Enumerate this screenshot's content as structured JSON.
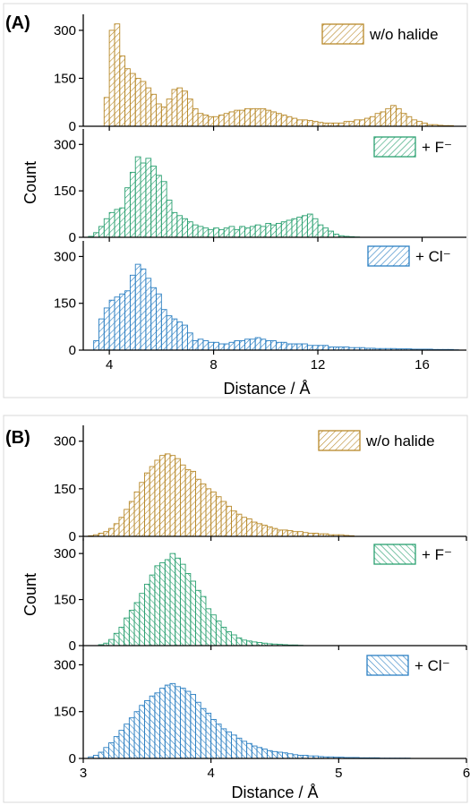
{
  "panels": [
    {
      "label": "(A)",
      "xlabel": "Distance / Å",
      "ylabel": "Count",
      "xlim": [
        3.0,
        17.7
      ],
      "xticks": [
        "4",
        "8",
        "12",
        "16"
      ],
      "xtick_values": [
        4,
        8,
        12,
        16
      ],
      "yticks": [
        "0",
        "150",
        "300"
      ],
      "ytick_values": [
        0,
        150,
        300
      ],
      "ylim": [
        0,
        350
      ]
    },
    {
      "label": "(B)",
      "xlabel": "Distance / Å",
      "ylabel": "Count",
      "xlim": [
        3.0,
        6.0
      ],
      "xticks": [
        "3",
        "4",
        "5",
        "6"
      ],
      "xtick_values": [
        3,
        4,
        5,
        6
      ],
      "yticks": [
        "0",
        "150",
        "300"
      ],
      "ytick_values": [
        0,
        150,
        300
      ],
      "ylim": [
        0,
        350
      ]
    }
  ],
  "chart_data": [
    {
      "type": "bar",
      "panel": "(A)",
      "xlabel": "Distance / Å",
      "ylabel": "Count",
      "xlim": [
        3.0,
        17.7
      ],
      "ylim": [
        0,
        350
      ],
      "bin_width": 0.2,
      "series": [
        {
          "name": "w/o halide",
          "color": "#b8892a",
          "x": [
            3.9,
            4.1,
            4.3,
            4.5,
            4.7,
            4.9,
            5.1,
            5.3,
            5.5,
            5.7,
            5.9,
            6.1,
            6.3,
            6.5,
            6.7,
            6.9,
            7.1,
            7.3,
            7.5,
            7.7,
            7.9,
            8.1,
            8.3,
            8.5,
            8.7,
            8.9,
            9.1,
            9.3,
            9.5,
            9.7,
            9.9,
            10.1,
            10.3,
            10.5,
            10.7,
            10.9,
            11.1,
            11.3,
            11.5,
            11.7,
            11.9,
            12.1,
            12.3,
            12.5,
            12.7,
            12.9,
            13.1,
            13.3,
            13.5,
            13.7,
            13.9,
            14.1,
            14.3,
            14.5,
            14.7,
            14.9,
            15.1,
            15.3,
            15.5,
            15.7,
            15.9,
            16.1,
            16.3,
            16.5,
            16.7,
            16.9,
            17.1
          ],
          "values": [
            90,
            300,
            320,
            220,
            180,
            165,
            150,
            140,
            120,
            100,
            70,
            60,
            85,
            115,
            120,
            110,
            85,
            55,
            40,
            35,
            30,
            30,
            35,
            40,
            45,
            50,
            50,
            55,
            55,
            55,
            55,
            50,
            45,
            40,
            35,
            30,
            25,
            20,
            20,
            18,
            15,
            12,
            10,
            10,
            10,
            10,
            15,
            15,
            20,
            20,
            25,
            30,
            40,
            45,
            55,
            65,
            55,
            40,
            30,
            20,
            15,
            10,
            5,
            5,
            3,
            2,
            2
          ]
        }
      ]
    },
    {
      "type": "bar",
      "panel": "(A)",
      "xlabel": "Distance / Å",
      "ylabel": "Count",
      "xlim": [
        3.0,
        17.7
      ],
      "ylim": [
        0,
        350
      ],
      "bin_width": 0.2,
      "series": [
        {
          "name": "+ F⁻",
          "color": "#2aa070",
          "x": [
            3.3,
            3.5,
            3.7,
            3.9,
            4.1,
            4.3,
            4.5,
            4.7,
            4.9,
            5.1,
            5.3,
            5.5,
            5.7,
            5.9,
            6.1,
            6.3,
            6.5,
            6.7,
            6.9,
            7.1,
            7.3,
            7.5,
            7.7,
            7.9,
            8.1,
            8.3,
            8.5,
            8.7,
            8.9,
            9.1,
            9.3,
            9.5,
            9.7,
            9.9,
            10.1,
            10.3,
            10.5,
            10.7,
            10.9,
            11.1,
            11.3,
            11.5,
            11.7,
            11.9,
            12.1,
            12.3,
            12.5,
            12.7,
            12.9,
            13.1,
            13.3,
            13.5
          ],
          "values": [
            3,
            15,
            35,
            60,
            80,
            90,
            95,
            160,
            210,
            260,
            240,
            255,
            230,
            200,
            180,
            120,
            80,
            70,
            60,
            50,
            40,
            35,
            30,
            25,
            30,
            25,
            30,
            35,
            25,
            35,
            30,
            35,
            40,
            35,
            45,
            40,
            45,
            50,
            55,
            60,
            65,
            70,
            75,
            60,
            40,
            30,
            20,
            10,
            5,
            3,
            2,
            1
          ]
        }
      ]
    },
    {
      "type": "bar",
      "panel": "(A)",
      "xlabel": "Distance / Å",
      "ylabel": "Count",
      "xlim": [
        3.0,
        17.7
      ],
      "ylim": [
        0,
        350
      ],
      "bin_width": 0.2,
      "series": [
        {
          "name": "+ Cl⁻",
          "color": "#2b7fc2",
          "x": [
            3.5,
            3.7,
            3.9,
            4.1,
            4.3,
            4.5,
            4.7,
            4.9,
            5.1,
            5.3,
            5.5,
            5.7,
            5.9,
            6.1,
            6.3,
            6.5,
            6.7,
            6.9,
            7.1,
            7.3,
            7.5,
            7.7,
            7.9,
            8.1,
            8.3,
            8.5,
            8.7,
            8.9,
            9.1,
            9.3,
            9.5,
            9.7,
            9.9,
            10.1,
            10.3,
            10.5,
            10.7,
            10.9,
            11.1,
            11.3,
            11.5,
            11.7,
            11.9,
            12.1,
            12.3,
            12.5,
            12.7,
            12.9,
            13.1,
            13.3,
            13.5,
            13.7,
            13.9,
            14.1,
            14.3,
            14.5,
            14.7,
            14.9,
            15.1,
            15.3,
            15.5,
            15.7,
            15.9,
            16.1,
            16.3,
            16.5,
            16.7,
            16.9,
            17.1,
            17.3
          ],
          "values": [
            30,
            100,
            135,
            160,
            170,
            180,
            190,
            240,
            275,
            260,
            230,
            200,
            180,
            130,
            110,
            100,
            90,
            80,
            55,
            30,
            35,
            30,
            25,
            25,
            20,
            20,
            25,
            30,
            30,
            35,
            35,
            40,
            35,
            30,
            30,
            25,
            25,
            20,
            20,
            20,
            20,
            15,
            15,
            15,
            15,
            10,
            10,
            10,
            10,
            8,
            8,
            8,
            6,
            6,
            5,
            5,
            5,
            5,
            4,
            4,
            4,
            3,
            3,
            3,
            3,
            2,
            2,
            2,
            2,
            1
          ]
        }
      ]
    },
    {
      "type": "bar",
      "panel": "(B)",
      "xlabel": "Distance / Å",
      "ylabel": "Count",
      "xlim": [
        3.0,
        6.0
      ],
      "ylim": [
        0,
        350
      ],
      "bin_width": 0.04,
      "series": [
        {
          "name": "w/o halide",
          "color": "#b8892a",
          "x": [
            3.06,
            3.1,
            3.14,
            3.18,
            3.22,
            3.26,
            3.3,
            3.34,
            3.38,
            3.42,
            3.46,
            3.5,
            3.54,
            3.58,
            3.62,
            3.66,
            3.7,
            3.74,
            3.78,
            3.82,
            3.86,
            3.9,
            3.94,
            3.98,
            4.02,
            4.06,
            4.1,
            4.14,
            4.18,
            4.22,
            4.26,
            4.3,
            4.34,
            4.38,
            4.42,
            4.46,
            4.5,
            4.54,
            4.58,
            4.62,
            4.66,
            4.7,
            4.74,
            4.78,
            4.82,
            4.86,
            4.9,
            4.94,
            4.98,
            5.02,
            5.06,
            5.1
          ],
          "values": [
            2,
            5,
            10,
            15,
            25,
            40,
            60,
            85,
            110,
            140,
            170,
            200,
            220,
            240,
            255,
            260,
            255,
            245,
            225,
            210,
            205,
            180,
            165,
            150,
            140,
            125,
            110,
            95,
            80,
            70,
            60,
            55,
            45,
            40,
            35,
            30,
            25,
            20,
            20,
            18,
            15,
            15,
            12,
            10,
            10,
            8,
            8,
            5,
            5,
            5,
            3,
            2
          ]
        }
      ]
    },
    {
      "type": "bar",
      "panel": "(B)",
      "xlabel": "Distance / Å",
      "ylabel": "Count",
      "xlim": [
        3.0,
        6.0
      ],
      "ylim": [
        0,
        350
      ],
      "bin_width": 0.04,
      "series": [
        {
          "name": "+ F⁻",
          "color": "#2aa070",
          "x": [
            3.14,
            3.18,
            3.22,
            3.26,
            3.3,
            3.34,
            3.38,
            3.42,
            3.46,
            3.5,
            3.54,
            3.58,
            3.62,
            3.66,
            3.7,
            3.74,
            3.78,
            3.82,
            3.86,
            3.9,
            3.94,
            3.98,
            4.02,
            4.06,
            4.1,
            4.14,
            4.18,
            4.22,
            4.26,
            4.3,
            4.34,
            4.38,
            4.42,
            4.46,
            4.5,
            4.54,
            4.58,
            4.62,
            4.66,
            4.7
          ],
          "values": [
            3,
            8,
            20,
            40,
            60,
            90,
            115,
            140,
            170,
            200,
            230,
            260,
            270,
            280,
            300,
            285,
            265,
            235,
            210,
            180,
            160,
            120,
            100,
            80,
            60,
            45,
            35,
            25,
            18,
            15,
            12,
            10,
            8,
            6,
            5,
            4,
            3,
            2,
            2,
            1
          ]
        }
      ]
    },
    {
      "type": "bar",
      "panel": "(B)",
      "xlabel": "Distance / Å",
      "ylabel": "Count",
      "xlim": [
        3.0,
        6.0
      ],
      "ylim": [
        0,
        350
      ],
      "bin_width": 0.04,
      "series": [
        {
          "name": "+ Cl⁻",
          "color": "#2b7fc2",
          "x": [
            3.06,
            3.1,
            3.14,
            3.18,
            3.22,
            3.26,
            3.3,
            3.34,
            3.38,
            3.42,
            3.46,
            3.5,
            3.54,
            3.58,
            3.62,
            3.66,
            3.7,
            3.74,
            3.78,
            3.82,
            3.86,
            3.9,
            3.94,
            3.98,
            4.02,
            4.06,
            4.1,
            4.14,
            4.18,
            4.22,
            4.26,
            4.3,
            4.34,
            4.38,
            4.42,
            4.46,
            4.5,
            4.54,
            4.58,
            4.62,
            4.66,
            4.7,
            4.74,
            4.78,
            4.82,
            4.86,
            4.9,
            4.94,
            4.98,
            5.02,
            5.06,
            5.1,
            5.14,
            5.18,
            5.22,
            5.26,
            5.3,
            5.34,
            5.38,
            5.42,
            5.46,
            5.5,
            5.54
          ],
          "values": [
            5,
            10,
            20,
            35,
            50,
            70,
            90,
            110,
            130,
            150,
            170,
            185,
            200,
            210,
            225,
            235,
            240,
            230,
            225,
            215,
            205,
            180,
            160,
            145,
            125,
            110,
            95,
            85,
            75,
            65,
            55,
            48,
            40,
            35,
            30,
            25,
            22,
            20,
            18,
            15,
            12,
            10,
            10,
            8,
            8,
            6,
            5,
            5,
            4,
            4,
            3,
            3,
            3,
            2,
            2,
            2,
            2,
            1,
            1,
            1,
            1,
            1,
            1
          ]
        }
      ]
    }
  ]
}
